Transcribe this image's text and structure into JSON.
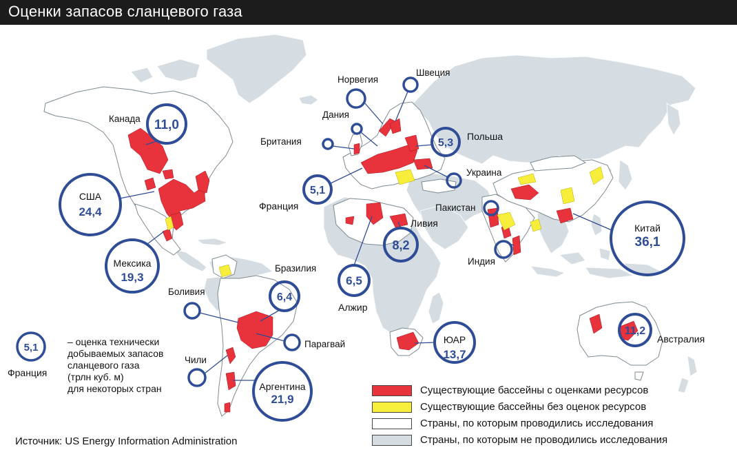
{
  "title": "Оценки запасов сланцевого газа",
  "colors": {
    "assessed": "#e8323c",
    "not_assessed": "#f7ee3c",
    "studied": "#ffffff",
    "not_studied": "#d5dde2",
    "bubble": "#2f4c97"
  },
  "bubbles": [
    {
      "country": "Канада",
      "value": "11,0"
    },
    {
      "country": "США",
      "value": "24,4"
    },
    {
      "country": "Мексика",
      "value": "19,3"
    },
    {
      "country": "Франция",
      "value": "5,1"
    },
    {
      "country": "Польша",
      "value": "5,3"
    },
    {
      "country": "Ливия",
      "value": "8,2"
    },
    {
      "country": "Алжир",
      "value": "6,5"
    },
    {
      "country": "Бразилия",
      "value": "6,4"
    },
    {
      "country": "Аргентина",
      "value": "21,9"
    },
    {
      "country": "ЮАР",
      "value": "13,7"
    },
    {
      "country": "Китай",
      "value": "36,1"
    },
    {
      "country": "Австралия",
      "value": "11,2"
    }
  ],
  "country_labels": {
    "norway": "Норвегия",
    "sweden": "Швеция",
    "denmark": "Дания",
    "britain": "Британия",
    "ukraine": "Украина",
    "pakistan": "Пакистан",
    "india": "Индия",
    "bolivia": "Боливия",
    "paraguay": "Парагвай",
    "chile": "Чили"
  },
  "note": {
    "value": "5,1",
    "country": "Франция",
    "lines": [
      "– оценка технически",
      "добываемых запасов",
      "сланцевого газа",
      "(трлн куб. м)",
      "для некоторых стран"
    ]
  },
  "legend": [
    {
      "label": "Существующие бассейны с оценками ресурсов"
    },
    {
      "label": "Существующие бассейны без оценок ресурсов"
    },
    {
      "label": "Страны, по которым проводились исследования"
    },
    {
      "label": "Страны, по которым не проводились исследования"
    }
  ],
  "source": "Источник: US Energy Information Administration"
}
